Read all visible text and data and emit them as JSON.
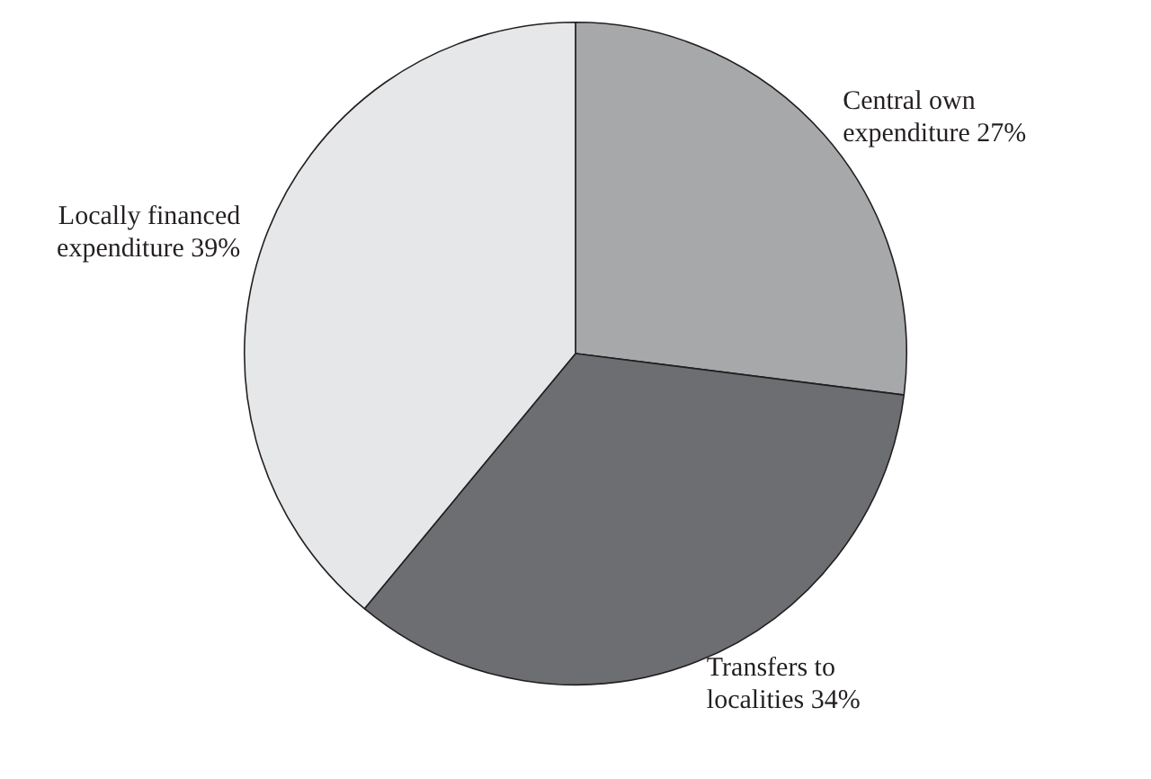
{
  "chart_data": {
    "type": "pie",
    "categories": [
      "Central own expenditure",
      "Transfers to localities",
      "Locally financed expenditure"
    ],
    "values": [
      27,
      34,
      39
    ],
    "colors": [
      "#a7a8aa",
      "#6d6e71",
      "#e6e7e8"
    ],
    "value_labels": [
      "27%",
      "34%",
      "39%"
    ],
    "legend": false
  }
}
